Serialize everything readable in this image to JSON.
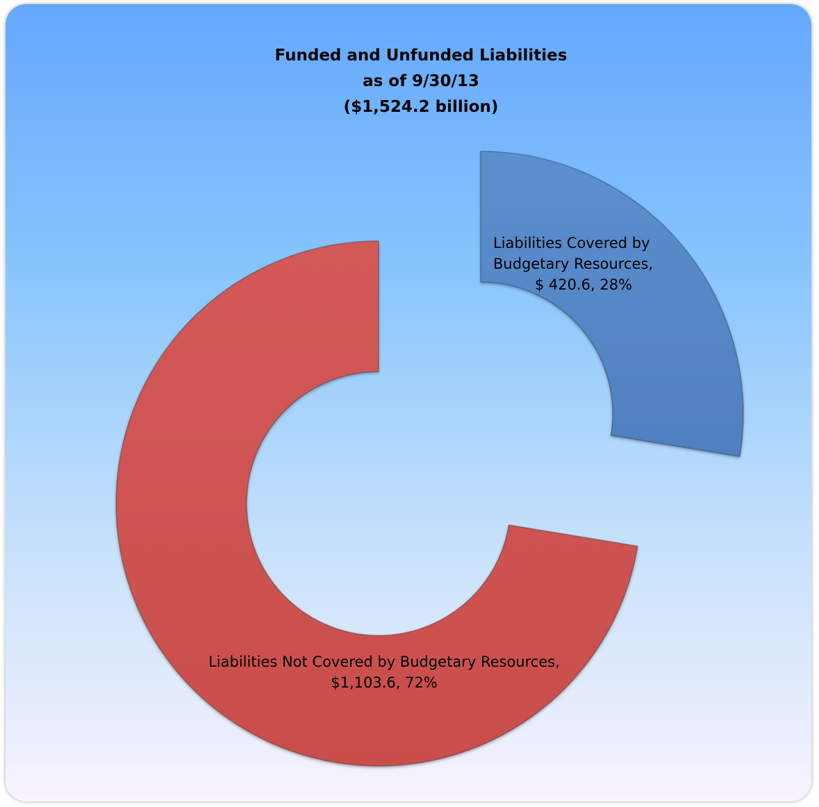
{
  "chart_data": {
    "type": "pie",
    "title": [
      "Funded and Unfunded Liabilities",
      "as of 9/30/13",
      "($1,524.2 billion)"
    ],
    "slices": [
      {
        "name": "Liabilities Covered by Budgetary Resources",
        "value": 420.6,
        "percent": 28,
        "color": "#5788c8",
        "label_lines": [
          "Liabilities Covered by",
          "Budgetary Resources,",
          "$ 420.6, 28%"
        ]
      },
      {
        "name": "Liabilities Not Covered by Budgetary Resources",
        "value": 1103.6,
        "percent": 72,
        "color": "#cf5553",
        "label_lines": [
          "Liabilities Not Covered by Budgetary Resources,",
          "$1,103.6, 72%"
        ]
      }
    ],
    "donut": true,
    "exploded": true,
    "legend": "none"
  }
}
